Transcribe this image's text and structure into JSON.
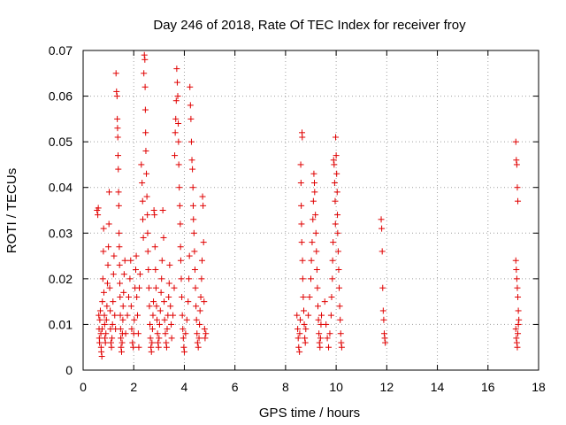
{
  "chart_data": {
    "type": "scatter",
    "title": "Day 246 of 2018, Rate Of TEC Index for receiver froy",
    "xlabel": "GPS time / hours",
    "ylabel": "ROTI / TECUs",
    "xlim": [
      0,
      18
    ],
    "ylim": [
      0,
      0.07
    ],
    "x_ticks": [
      0,
      2,
      4,
      6,
      8,
      10,
      12,
      14,
      16,
      18
    ],
    "y_ticks": [
      0,
      0.01,
      0.02,
      0.03,
      0.04,
      0.05,
      0.06,
      0.07
    ],
    "x_tick_labels": [
      "0",
      "2",
      "4",
      "6",
      "8",
      "10",
      "12",
      "14",
      "16",
      "18"
    ],
    "y_tick_labels": [
      "0",
      "0.01",
      "0.02",
      "0.03",
      "0.04",
      "0.05",
      "0.06",
      "0.07"
    ],
    "grid": true,
    "marker": "+",
    "color": "#e00000",
    "series": [
      {
        "name": "ROTI",
        "points": [
          [
            0.55,
            0.035
          ],
          [
            0.58,
            0.034
          ],
          [
            0.6,
            0.0355
          ],
          [
            0.62,
            0.012
          ],
          [
            0.63,
            0.009
          ],
          [
            0.64,
            0.007
          ],
          [
            0.65,
            0.006
          ],
          [
            0.66,
            0.011
          ],
          [
            0.68,
            0.013
          ],
          [
            0.7,
            0.008
          ],
          [
            0.71,
            0.005
          ],
          [
            0.72,
            0.004
          ],
          [
            0.74,
            0.003
          ],
          [
            0.75,
            0.009
          ],
          [
            0.76,
            0.015
          ],
          [
            0.78,
            0.02
          ],
          [
            0.8,
            0.026
          ],
          [
            0.81,
            0.031
          ],
          [
            0.82,
            0.017
          ],
          [
            0.84,
            0.012
          ],
          [
            0.85,
            0.01
          ],
          [
            0.86,
            0.007
          ],
          [
            0.88,
            0.006
          ],
          [
            0.9,
            0.008
          ],
          [
            0.92,
            0.011
          ],
          [
            0.94,
            0.014
          ],
          [
            0.96,
            0.019
          ],
          [
            0.98,
            0.023
          ],
          [
            1.0,
            0.027
          ],
          [
            1.02,
            0.032
          ],
          [
            1.03,
            0.039
          ],
          [
            1.05,
            0.018
          ],
          [
            1.07,
            0.013
          ],
          [
            1.08,
            0.009
          ],
          [
            1.1,
            0.006
          ],
          [
            1.12,
            0.005
          ],
          [
            1.14,
            0.007
          ],
          [
            1.16,
            0.01
          ],
          [
            1.18,
            0.015
          ],
          [
            1.2,
            0.021
          ],
          [
            1.22,
            0.025
          ],
          [
            1.25,
            0.012
          ],
          [
            1.28,
            0.009
          ],
          [
            1.3,
            0.065
          ],
          [
            1.32,
            0.061
          ],
          [
            1.34,
            0.06
          ],
          [
            1.35,
            0.055
          ],
          [
            1.36,
            0.053
          ],
          [
            1.37,
            0.051
          ],
          [
            1.38,
            0.047
          ],
          [
            1.39,
            0.044
          ],
          [
            1.4,
            0.039
          ],
          [
            1.41,
            0.036
          ],
          [
            1.42,
            0.03
          ],
          [
            1.43,
            0.027
          ],
          [
            1.44,
            0.023
          ],
          [
            1.45,
            0.019
          ],
          [
            1.46,
            0.016
          ],
          [
            1.47,
            0.012
          ],
          [
            1.48,
            0.009
          ],
          [
            1.49,
            0.007
          ],
          [
            1.5,
            0.005
          ],
          [
            1.52,
            0.004
          ],
          [
            1.54,
            0.006
          ],
          [
            1.55,
            0.008
          ],
          [
            1.57,
            0.011
          ],
          [
            1.58,
            0.014
          ],
          [
            1.6,
            0.017
          ],
          [
            1.62,
            0.021
          ],
          [
            1.65,
            0.024
          ],
          [
            1.68,
            0.008
          ],
          [
            1.75,
            0.012
          ],
          [
            1.8,
            0.016
          ],
          [
            1.85,
            0.02
          ],
          [
            1.88,
            0.024
          ],
          [
            1.9,
            0.014
          ],
          [
            1.92,
            0.009
          ],
          [
            1.95,
            0.006
          ],
          [
            1.98,
            0.005
          ],
          [
            2.0,
            0.008
          ],
          [
            2.02,
            0.011
          ],
          [
            2.05,
            0.018
          ],
          [
            2.08,
            0.022
          ],
          [
            2.1,
            0.025
          ],
          [
            2.12,
            0.016
          ],
          [
            2.15,
            0.012
          ],
          [
            2.18,
            0.008
          ],
          [
            2.2,
            0.005
          ],
          [
            2.22,
            0.018
          ],
          [
            2.25,
            0.021
          ],
          [
            2.3,
            0.045
          ],
          [
            2.33,
            0.041
          ],
          [
            2.35,
            0.037
          ],
          [
            2.36,
            0.033
          ],
          [
            2.38,
            0.029
          ],
          [
            2.4,
            0.065
          ],
          [
            2.42,
            0.069
          ],
          [
            2.44,
            0.068
          ],
          [
            2.45,
            0.062
          ],
          [
            2.46,
            0.057
          ],
          [
            2.47,
            0.052
          ],
          [
            2.48,
            0.048
          ],
          [
            2.5,
            0.043
          ],
          [
            2.52,
            0.038
          ],
          [
            2.54,
            0.034
          ],
          [
            2.55,
            0.03
          ],
          [
            2.56,
            0.026
          ],
          [
            2.58,
            0.022
          ],
          [
            2.6,
            0.018
          ],
          [
            2.62,
            0.014
          ],
          [
            2.64,
            0.01
          ],
          [
            2.66,
            0.007
          ],
          [
            2.68,
            0.005
          ],
          [
            2.7,
            0.004
          ],
          [
            2.72,
            0.006
          ],
          [
            2.74,
            0.009
          ],
          [
            2.76,
            0.012
          ],
          [
            2.78,
            0.015
          ],
          [
            2.8,
            0.035
          ],
          [
            2.82,
            0.034
          ],
          [
            2.84,
            0.027
          ],
          [
            2.86,
            0.022
          ],
          [
            2.88,
            0.018
          ],
          [
            2.9,
            0.014
          ],
          [
            2.92,
            0.011
          ],
          [
            2.94,
            0.008
          ],
          [
            2.96,
            0.006
          ],
          [
            2.98,
            0.005
          ],
          [
            3.0,
            0.007
          ],
          [
            3.02,
            0.01
          ],
          [
            3.05,
            0.013
          ],
          [
            3.08,
            0.017
          ],
          [
            3.1,
            0.02
          ],
          [
            3.12,
            0.024
          ],
          [
            3.15,
            0.035
          ],
          [
            3.18,
            0.029
          ],
          [
            3.2,
            0.015
          ],
          [
            3.22,
            0.011
          ],
          [
            3.25,
            0.008
          ],
          [
            3.28,
            0.006
          ],
          [
            3.3,
            0.005
          ],
          [
            3.32,
            0.009
          ],
          [
            3.35,
            0.012
          ],
          [
            3.38,
            0.016
          ],
          [
            3.4,
            0.019
          ],
          [
            3.42,
            0.023
          ],
          [
            3.45,
            0.014
          ],
          [
            3.48,
            0.01
          ],
          [
            3.5,
            0.007
          ],
          [
            3.55,
            0.012
          ],
          [
            3.6,
            0.018
          ],
          [
            3.62,
            0.047
          ],
          [
            3.64,
            0.052
          ],
          [
            3.66,
            0.055
          ],
          [
            3.68,
            0.059
          ],
          [
            3.7,
            0.066
          ],
          [
            3.72,
            0.063
          ],
          [
            3.74,
            0.06
          ],
          [
            3.76,
            0.054
          ],
          [
            3.77,
            0.05
          ],
          [
            3.78,
            0.045
          ],
          [
            3.8,
            0.04
          ],
          [
            3.82,
            0.036
          ],
          [
            3.84,
            0.032
          ],
          [
            3.85,
            0.027
          ],
          [
            3.86,
            0.024
          ],
          [
            3.88,
            0.02
          ],
          [
            3.9,
            0.016
          ],
          [
            3.92,
            0.012
          ],
          [
            3.94,
            0.009
          ],
          [
            3.96,
            0.007
          ],
          [
            3.98,
            0.005
          ],
          [
            4.0,
            0.004
          ],
          [
            4.05,
            0.008
          ],
          [
            4.1,
            0.011
          ],
          [
            4.15,
            0.015
          ],
          [
            4.18,
            0.02
          ],
          [
            4.2,
            0.025
          ],
          [
            4.22,
            0.062
          ],
          [
            4.24,
            0.058
          ],
          [
            4.26,
            0.055
          ],
          [
            4.28,
            0.05
          ],
          [
            4.3,
            0.046
          ],
          [
            4.32,
            0.044
          ],
          [
            4.34,
            0.04
          ],
          [
            4.35,
            0.036
          ],
          [
            4.36,
            0.033
          ],
          [
            4.38,
            0.03
          ],
          [
            4.4,
            0.026
          ],
          [
            4.42,
            0.022
          ],
          [
            4.44,
            0.018
          ],
          [
            4.46,
            0.014
          ],
          [
            4.48,
            0.011
          ],
          [
            4.5,
            0.008
          ],
          [
            4.52,
            0.006
          ],
          [
            4.55,
            0.005
          ],
          [
            4.58,
            0.007
          ],
          [
            4.6,
            0.01
          ],
          [
            4.62,
            0.013
          ],
          [
            4.65,
            0.016
          ],
          [
            4.68,
            0.02
          ],
          [
            4.7,
            0.024
          ],
          [
            4.72,
            0.038
          ],
          [
            4.74,
            0.036
          ],
          [
            4.76,
            0.028
          ],
          [
            4.78,
            0.015
          ],
          [
            4.8,
            0.009
          ],
          [
            4.82,
            0.007
          ],
          [
            4.85,
            0.008
          ],
          [
            8.45,
            0.012
          ],
          [
            8.48,
            0.009
          ],
          [
            8.5,
            0.007
          ],
          [
            8.52,
            0.005
          ],
          [
            8.55,
            0.004
          ],
          [
            8.56,
            0.008
          ],
          [
            8.58,
            0.011
          ],
          [
            8.6,
            0.045
          ],
          [
            8.61,
            0.041
          ],
          [
            8.62,
            0.036
          ],
          [
            8.63,
            0.032
          ],
          [
            8.64,
            0.028
          ],
          [
            8.65,
            0.052
          ],
          [
            8.66,
            0.051
          ],
          [
            8.67,
            0.024
          ],
          [
            8.68,
            0.02
          ],
          [
            8.7,
            0.016
          ],
          [
            8.72,
            0.013
          ],
          [
            8.74,
            0.01
          ],
          [
            8.76,
            0.007
          ],
          [
            8.78,
            0.006
          ],
          [
            8.8,
            0.009
          ],
          [
            8.9,
            0.012
          ],
          [
            8.95,
            0.016
          ],
          [
            9.0,
            0.02
          ],
          [
            9.02,
            0.024
          ],
          [
            9.05,
            0.028
          ],
          [
            9.08,
            0.033
          ],
          [
            9.1,
            0.037
          ],
          [
            9.12,
            0.043
          ],
          [
            9.14,
            0.041
          ],
          [
            9.15,
            0.039
          ],
          [
            9.18,
            0.034
          ],
          [
            9.2,
            0.03
          ],
          [
            9.22,
            0.026
          ],
          [
            9.24,
            0.022
          ],
          [
            9.26,
            0.018
          ],
          [
            9.28,
            0.014
          ],
          [
            9.3,
            0.011
          ],
          [
            9.32,
            0.008
          ],
          [
            9.34,
            0.006
          ],
          [
            9.36,
            0.005
          ],
          [
            9.38,
            0.007
          ],
          [
            9.4,
            0.01
          ],
          [
            9.42,
            0.012
          ],
          [
            9.55,
            0.015
          ],
          [
            9.6,
            0.01
          ],
          [
            9.65,
            0.007
          ],
          [
            9.7,
            0.005
          ],
          [
            9.75,
            0.008
          ],
          [
            9.8,
            0.012
          ],
          [
            9.82,
            0.016
          ],
          [
            9.85,
            0.02
          ],
          [
            9.86,
            0.024
          ],
          [
            9.88,
            0.028
          ],
          [
            9.9,
            0.046
          ],
          [
            9.92,
            0.045
          ],
          [
            9.94,
            0.041
          ],
          [
            9.96,
            0.037
          ],
          [
            9.97,
            0.032
          ],
          [
            9.98,
            0.051
          ],
          [
            10.0,
            0.047
          ],
          [
            10.02,
            0.043
          ],
          [
            10.04,
            0.039
          ],
          [
            10.05,
            0.034
          ],
          [
            10.06,
            0.03
          ],
          [
            10.08,
            0.026
          ],
          [
            10.1,
            0.022
          ],
          [
            10.12,
            0.018
          ],
          [
            10.14,
            0.014
          ],
          [
            10.16,
            0.011
          ],
          [
            10.18,
            0.008
          ],
          [
            10.2,
            0.006
          ],
          [
            10.22,
            0.005
          ],
          [
            11.78,
            0.033
          ],
          [
            11.8,
            0.031
          ],
          [
            11.82,
            0.026
          ],
          [
            11.84,
            0.018
          ],
          [
            11.86,
            0.013
          ],
          [
            11.88,
            0.011
          ],
          [
            11.9,
            0.008
          ],
          [
            11.92,
            0.007
          ],
          [
            11.94,
            0.006
          ],
          [
            17.1,
            0.05
          ],
          [
            17.12,
            0.046
          ],
          [
            17.14,
            0.045
          ],
          [
            17.16,
            0.04
          ],
          [
            17.18,
            0.037
          ],
          [
            17.1,
            0.024
          ],
          [
            17.12,
            0.022
          ],
          [
            17.14,
            0.02
          ],
          [
            17.16,
            0.018
          ],
          [
            17.18,
            0.016
          ],
          [
            17.2,
            0.013
          ],
          [
            17.22,
            0.011
          ],
          [
            17.1,
            0.009
          ],
          [
            17.12,
            0.007
          ],
          [
            17.14,
            0.006
          ],
          [
            17.16,
            0.005
          ],
          [
            17.18,
            0.008
          ],
          [
            17.2,
            0.01
          ]
        ]
      }
    ]
  }
}
